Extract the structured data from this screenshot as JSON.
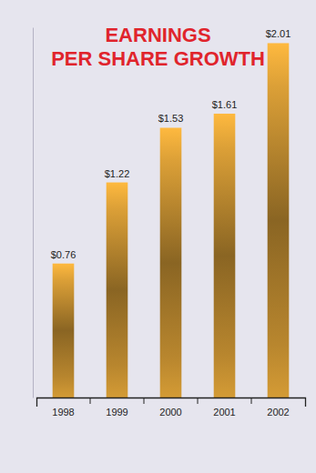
{
  "chart_data": {
    "type": "bar",
    "title": "EARNINGS PER SHARE GROWTH",
    "categories": [
      "1998",
      "1999",
      "2000",
      "2001",
      "2002"
    ],
    "values": [
      0.76,
      1.22,
      1.53,
      1.61,
      2.01
    ],
    "value_labels": [
      "$0.76",
      "$1.22",
      "$1.53",
      "$1.61",
      "$2.01"
    ],
    "color": "#b8862e",
    "ylim": [
      0,
      2.1
    ],
    "data_labels": true,
    "tick_labels": "x",
    "grid": false
  }
}
